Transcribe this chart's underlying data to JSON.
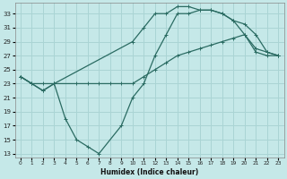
{
  "xlabel": "Humidex (Indice chaleur)",
  "bg_color": "#c5e8e8",
  "line_color": "#2a6b62",
  "grid_color": "#aad4d4",
  "xlim": [
    -0.5,
    23.5
  ],
  "ylim": [
    12.5,
    34.5
  ],
  "xticks": [
    0,
    1,
    2,
    3,
    4,
    5,
    6,
    7,
    8,
    9,
    10,
    11,
    12,
    13,
    14,
    15,
    16,
    17,
    18,
    19,
    20,
    21,
    22,
    23
  ],
  "yticks": [
    13,
    15,
    17,
    19,
    21,
    23,
    25,
    27,
    29,
    31,
    33
  ],
  "line1_x": [
    0,
    1,
    2,
    3,
    4,
    5,
    6,
    7,
    9,
    10,
    11,
    12,
    13,
    14,
    15,
    16,
    17,
    18,
    19,
    20,
    21,
    22,
    23
  ],
  "line1_y": [
    24,
    23,
    22,
    23,
    18,
    15,
    14,
    13,
    17,
    21,
    23,
    27,
    30,
    33,
    33,
    33.5,
    33.5,
    33,
    32,
    30,
    28,
    27.5,
    27
  ],
  "line2_x": [
    0,
    1,
    2,
    3,
    10,
    11,
    12,
    13,
    14,
    15,
    16,
    17,
    18,
    19,
    20,
    21,
    22,
    23
  ],
  "line2_y": [
    24,
    23,
    23,
    23,
    29,
    31,
    33,
    33,
    34,
    34,
    33.5,
    33.5,
    33,
    32,
    31.5,
    30,
    27.5,
    27
  ],
  "line3_x": [
    0,
    1,
    2,
    3,
    5,
    6,
    7,
    8,
    9,
    10,
    11,
    12,
    13,
    14,
    15,
    16,
    17,
    18,
    19,
    20,
    21,
    22,
    23
  ],
  "line3_y": [
    24,
    23,
    22,
    23,
    23,
    23,
    23,
    23,
    23,
    23,
    24,
    25,
    26,
    27,
    27.5,
    28,
    28.5,
    29,
    29.5,
    30,
    27.5,
    27,
    27
  ]
}
